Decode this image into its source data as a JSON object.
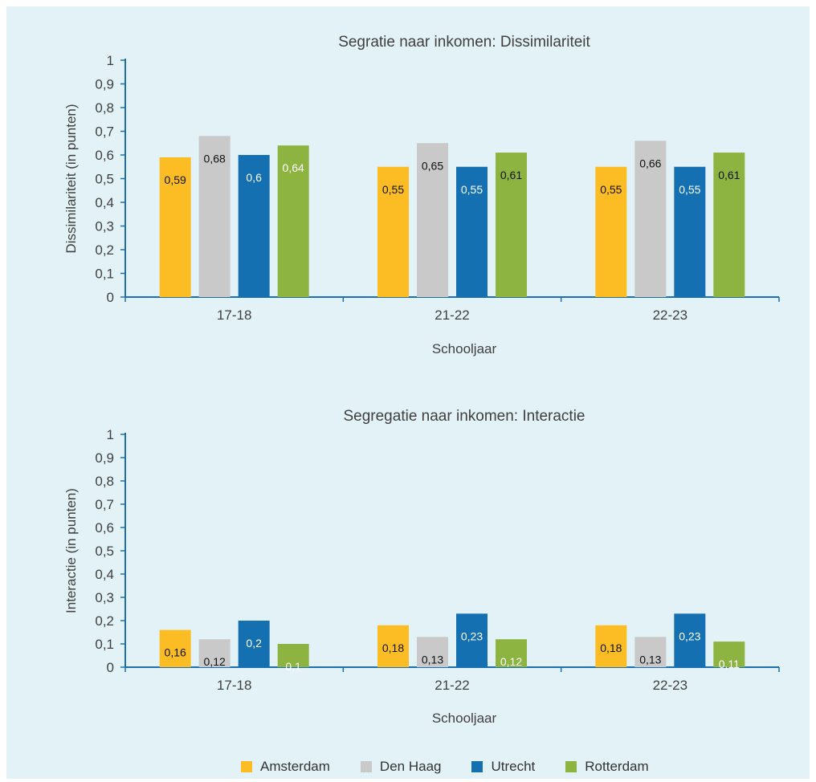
{
  "colors": {
    "panel": "#e3f2f7",
    "axis": "#1d6fb0",
    "Amsterdam": "#fbbd23",
    "Den Haag": "#c9c9c9",
    "Utrecht": "#1470b0",
    "Rotterdam": "#8db441"
  },
  "legend": [
    {
      "name": "Amsterdam",
      "label": "Amsterdam"
    },
    {
      "name": "Den Haag",
      "label": "Den Haag"
    },
    {
      "name": "Utrecht",
      "label": "Utrecht"
    },
    {
      "name": "Rotterdam",
      "label": "Rotterdam"
    }
  ],
  "chart_data": [
    {
      "type": "bar",
      "title": "Segratie naar inkomen: Dissimilariteit",
      "xlabel": "Schooljaar",
      "ylabel": "Dissimilariteit (in punten)",
      "ylim": [
        0,
        1
      ],
      "yticks": [
        "0",
        "0,1",
        "0,2",
        "0,3",
        "0,4",
        "0,5",
        "0,6",
        "0,7",
        "0,8",
        "0,9",
        "1"
      ],
      "categories": [
        "17-18",
        "21-22",
        "22-23"
      ],
      "series": [
        {
          "name": "Amsterdam",
          "values": [
            0.59,
            0.55,
            0.55
          ],
          "labels": [
            "0,59",
            "0,55",
            "0,55"
          ]
        },
        {
          "name": "Den Haag",
          "values": [
            0.68,
            0.65,
            0.66
          ],
          "labels": [
            "0,68",
            "0,65",
            "0,66"
          ]
        },
        {
          "name": "Utrecht",
          "values": [
            0.6,
            0.55,
            0.55
          ],
          "labels": [
            "0,6",
            "0,55",
            "0,55"
          ]
        },
        {
          "name": "Rotterdam",
          "values": [
            0.64,
            0.61,
            0.61
          ],
          "labels": [
            "0,64",
            "0,61",
            "0,61"
          ]
        }
      ],
      "legend": "bottom",
      "grid": false
    },
    {
      "type": "bar",
      "title": "Segregatie naar inkomen: Interactie",
      "xlabel": "Schooljaar",
      "ylabel": "Interactie (in punten)",
      "ylim": [
        0,
        1
      ],
      "yticks": [
        "0",
        "0,1",
        "0,2",
        "0,3",
        "0,4",
        "0,5",
        "0,6",
        "0,7",
        "0,8",
        "0,9",
        "1"
      ],
      "categories": [
        "17-18",
        "21-22",
        "22-23"
      ],
      "series": [
        {
          "name": "Amsterdam",
          "values": [
            0.16,
            0.18,
            0.18
          ],
          "labels": [
            "0,16",
            "0,18",
            "0,18"
          ]
        },
        {
          "name": "Den Haag",
          "values": [
            0.12,
            0.13,
            0.13
          ],
          "labels": [
            "0,12",
            "0,13",
            "0,13"
          ]
        },
        {
          "name": "Utrecht",
          "values": [
            0.2,
            0.23,
            0.23
          ],
          "labels": [
            "0,2",
            "0,23",
            "0,23"
          ]
        },
        {
          "name": "Rotterdam",
          "values": [
            0.1,
            0.12,
            0.11
          ],
          "labels": [
            "0,1",
            "0,12",
            "0,11"
          ]
        }
      ],
      "legend": "bottom",
      "grid": false
    }
  ]
}
